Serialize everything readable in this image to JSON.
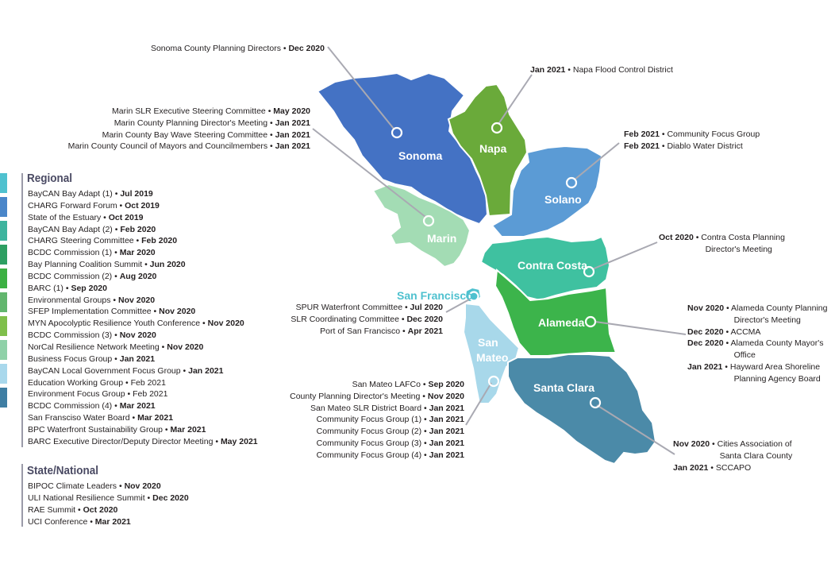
{
  "regional": {
    "title": "Regional",
    "items": [
      {
        "name": "BayCAN Bay Adapt (1) • ",
        "date": "Jul 2019",
        "bold": true
      },
      {
        "name": "CHARG Forward Forum • ",
        "date": "Oct 2019",
        "bold": true
      },
      {
        "name": "State of the Estuary • ",
        "date": "Oct 2019",
        "bold": true
      },
      {
        "name": "BayCAN Bay Adapt (2) • ",
        "date": "Feb 2020",
        "bold": true
      },
      {
        "name": "CHARG Steering Committee • ",
        "date": "Feb 2020",
        "bold": true
      },
      {
        "name": "BCDC Commission (1) • ",
        "date": "Mar 2020",
        "bold": true
      },
      {
        "name": "Bay Planning Coalition Summit • ",
        "date": "Jun 2020",
        "bold": true
      },
      {
        "name": "BCDC Commission (2) • ",
        "date": "Aug 2020",
        "bold": true
      },
      {
        "name": "BARC (1) • ",
        "date": "Sep 2020",
        "bold": true
      },
      {
        "name": "Environmental Groups • ",
        "date": "Nov 2020",
        "bold": true
      },
      {
        "name": "SFEP Implementation Committee • ",
        "date": "Nov 2020",
        "bold": true
      },
      {
        "name": "MYN Apocolyptic Resilience Youth Conference • ",
        "date": "Nov 2020",
        "bold": true
      },
      {
        "name": "BCDC Commission (3) • ",
        "date": "Nov 2020",
        "bold": true
      },
      {
        "name": "NorCal Resilience Network Meeting • ",
        "date": "Nov 2020",
        "bold": true
      },
      {
        "name": "Business Focus Group • ",
        "date": "Jan 2021",
        "bold": true
      },
      {
        "name": "BayCAN Local Government Focus Group • ",
        "date": "Jan 2021",
        "bold": true
      },
      {
        "name": "Education Working Group • ",
        "date": "Feb 2021",
        "bold": false
      },
      {
        "name": "Environment Focus Group • ",
        "date": "Feb 2021",
        "bold": false
      },
      {
        "name": "BCDC Commission (4) • ",
        "date": "Mar 2021",
        "bold": true
      },
      {
        "name": "San Fransciso Water Board • ",
        "date": "Mar 2021",
        "bold": true
      },
      {
        "name": "BPC Waterfront Sustainability Group • ",
        "date": "Mar 2021",
        "bold": true
      },
      {
        "name": "BARC Executive Director/Deputy Director Meeting • ",
        "date": "May 2021",
        "bold": true
      }
    ],
    "swatch_colors": [
      "#4fc1cf",
      "#4a86c9",
      "#3db49e",
      "#2d9f62",
      "#3cb043",
      "#62b66e",
      "#7fbf4b",
      "#8fd1a8",
      "#a9d8ec",
      "#3f7ea3"
    ]
  },
  "state_national": {
    "title": "State/National",
    "items": [
      {
        "name": "BIPOC Climate Leaders • ",
        "date": "Nov 2020"
      },
      {
        "name": "ULI National Resilience Summit • ",
        "date": "Dec 2020"
      },
      {
        "name": "RAE Summit • ",
        "date": "Oct 2020"
      },
      {
        "name": "UCI Conference • ",
        "date": "Mar 2021"
      }
    ]
  },
  "counties": {
    "sonoma": {
      "label": "Sonoma",
      "color": "#4472c4"
    },
    "napa": {
      "label": "Napa",
      "color": "#6aaa3a"
    },
    "solano": {
      "label": "Solano",
      "color": "#5b9bd5"
    },
    "marin": {
      "label": "Marin",
      "color": "#a3dcb4"
    },
    "contra_costa": {
      "label": "Contra Costa",
      "color": "#3fc1a0"
    },
    "san_francisco": {
      "label": "San Francisco",
      "color": "#4fc1cf"
    },
    "alameda": {
      "label": "Alameda",
      "color": "#3cb44b"
    },
    "san_mateo": {
      "label_line1": "San",
      "label_line2": "Mateo",
      "color": "#a8d8ea"
    },
    "santa_clara": {
      "label": "Santa Clara",
      "color": "#4b8aa8"
    }
  },
  "callouts": {
    "sonoma": [
      {
        "name": "Sonoma County Planning Directors • ",
        "date": "Dec 2020"
      }
    ],
    "napa": [
      {
        "date": "Jan 2021",
        "name": " • Napa Flood Control District"
      }
    ],
    "marin": [
      {
        "name": "Marin SLR Executive Steering Committee • ",
        "date": "May 2020"
      },
      {
        "name": "Marin County Planning Director's Meeting • ",
        "date": "Jan 2021"
      },
      {
        "name": "Marin County Bay Wave Steering Committee • ",
        "date": "Jan 2021"
      },
      {
        "name": "Marin County Council of Mayors and Councilmembers • ",
        "date": "Jan 2021"
      }
    ],
    "solano": [
      {
        "date": "Feb 2021",
        "name": " • Community Focus Group"
      },
      {
        "date": "Feb 2021",
        "name": " • Diablo Water District"
      }
    ],
    "contra_costa": [
      {
        "date": "Oct 2020",
        "name": " • Contra Costa Planning",
        "cont": "Director's Meeting"
      }
    ],
    "san_francisco": [
      {
        "name": "SPUR Waterfront Committee • ",
        "date": "Jul 2020"
      },
      {
        "name": "SLR Coordinating Committee • ",
        "date": "Dec 2020"
      },
      {
        "name": "Port of San Francisco • ",
        "date": "Apr 2021"
      }
    ],
    "alameda": [
      {
        "date": "Nov 2020",
        "name": " • Alameda County Planning",
        "cont": "Director's Meeting"
      },
      {
        "date": "Dec 2020",
        "name": " • ACCMA"
      },
      {
        "date": "Dec 2020",
        "name": " • Alameda County Mayor's",
        "cont": "Office"
      },
      {
        "date": "Jan 2021",
        "name": " • Hayward Area Shoreline",
        "cont": "Planning Agency Board"
      }
    ],
    "san_mateo": [
      {
        "name": "San Mateo LAFCo • ",
        "date": "Sep 2020"
      },
      {
        "name": "County Planning Director's Meeting • ",
        "date": "Nov 2020"
      },
      {
        "name": "San Mateo SLR District Board • ",
        "date": "Jan 2021"
      },
      {
        "name": "Community Focus Group (1) • ",
        "date": "Jan 2021"
      },
      {
        "name": "Community Focus Group (2) • ",
        "date": "Jan 2021"
      },
      {
        "name": "Community Focus Group (3) • ",
        "date": "Jan 2021"
      },
      {
        "name": "Community Focus Group (4) • ",
        "date": "Jan 2021"
      }
    ],
    "santa_clara": [
      {
        "date": "Nov 2020",
        "name": " • Cities Association of",
        "cont": "Santa Clara County"
      },
      {
        "date": "Jan 2021",
        "name": " • SCCAPO"
      }
    ]
  }
}
